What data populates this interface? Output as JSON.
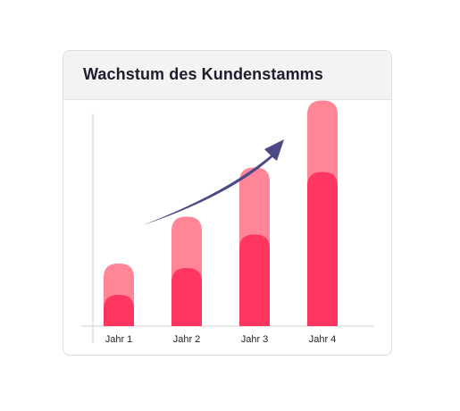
{
  "card": {
    "title": "Wachstum des Kundenstamms"
  },
  "chart_data": {
    "type": "bar",
    "stacked": true,
    "title": "Wachstum des Kundenstamms",
    "categories": [
      "Jahr 1",
      "Jahr 2",
      "Jahr 3",
      "Jahr 4"
    ],
    "series": [
      {
        "values": [
          14,
          26,
          41,
          69
        ],
        "color": "#ff3660"
      },
      {
        "values": [
          14,
          23,
          30,
          32
        ],
        "color": "#ff8597"
      }
    ],
    "ylim": [
      0,
      100
    ],
    "grid": false,
    "legend": "none",
    "trend_arrow_color": "#4a4a86"
  }
}
